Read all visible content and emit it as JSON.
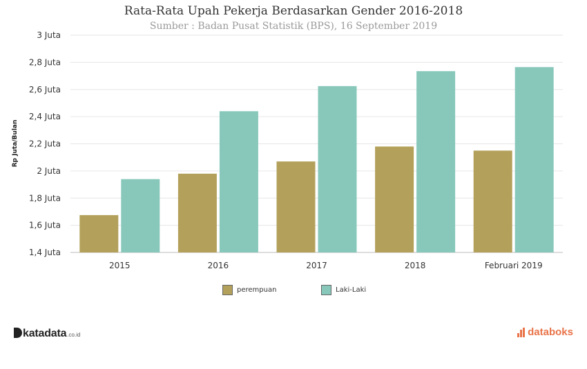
{
  "chart_data": {
    "type": "bar",
    "title": "Rata-Rata Upah Pekerja Berdasarkan Gender 2016-2018",
    "subtitle": "Sumber : Badan Pusat Statistik (BPS), 16 September 2019",
    "ylabel": "Rp Juta/Bulan",
    "xlabel": "",
    "categories": [
      "2015",
      "2016",
      "2017",
      "2018",
      "Februari 2019"
    ],
    "series": [
      {
        "name": "perempuan",
        "color": "#b3a15b",
        "values": [
          1.675,
          1.98,
          2.07,
          2.18,
          2.15
        ]
      },
      {
        "name": "Laki-Laki",
        "color": "#88c8bb",
        "values": [
          1.94,
          2.44,
          2.625,
          2.735,
          2.765
        ]
      }
    ],
    "ylim": [
      1.4,
      3.0
    ],
    "yticks": [
      1.4,
      1.6,
      1.8,
      2.0,
      2.2,
      2.4,
      2.6,
      2.8,
      3.0
    ],
    "ytick_labels": [
      "1,4 Juta",
      "1,6 Juta",
      "1,8 Juta",
      "2 Juta",
      "2,2 Juta",
      "2,4 Juta",
      "2,6 Juta",
      "2,8 Juta",
      "3 Juta"
    ],
    "grid": true,
    "legend_position": "bottom"
  },
  "brand": {
    "left_name": "katadata",
    "left_suffix": ".co.id",
    "right_name": "databoks",
    "right_color": "#e9744a"
  }
}
